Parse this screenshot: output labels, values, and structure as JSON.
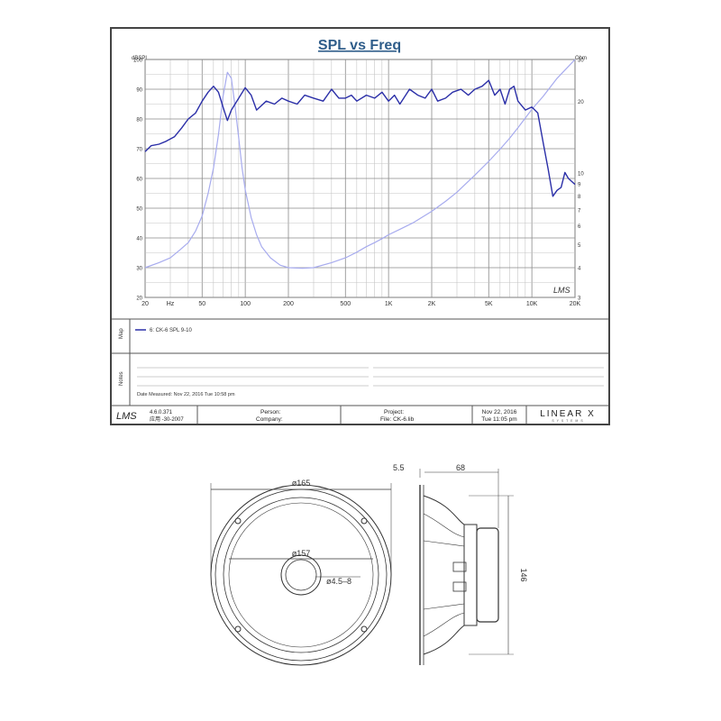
{
  "chart_data": {
    "type": "line",
    "title": "SPL vs Freq",
    "y_left_unit": "dBSPL",
    "y_right_unit": "Ohm",
    "ylim_left": [
      20,
      100
    ],
    "ylim_right": [
      3,
      30
    ],
    "right_scale": "log",
    "xlim": [
      20,
      20000
    ],
    "x_scale": "log",
    "grid": true,
    "x_ticks": [
      {
        "v": 20,
        "label": "20"
      },
      {
        "v": 50,
        "label": "50"
      },
      {
        "v": 100,
        "label": "100"
      },
      {
        "v": 200,
        "label": "200"
      },
      {
        "v": 500,
        "label": "500"
      },
      {
        "v": 1000,
        "label": "1K"
      },
      {
        "v": 2000,
        "label": "2K"
      },
      {
        "v": 5000,
        "label": "5K"
      },
      {
        "v": 10000,
        "label": "10K"
      },
      {
        "v": 20000,
        "label": "20K"
      }
    ],
    "x_unit": "Hz",
    "y_left_ticks": [
      20,
      30,
      40,
      50,
      60,
      70,
      80,
      90,
      100
    ],
    "y_right_ticks": [
      3,
      4,
      5,
      6,
      7,
      8,
      9,
      10,
      20,
      30
    ],
    "series": [
      {
        "name": "6: CK-6 SPL 9-10",
        "axis": "left",
        "color": "#2b2fa8",
        "x": [
          20,
          22,
          25,
          28,
          32,
          36,
          40,
          45,
          50,
          55,
          60,
          65,
          70,
          75,
          80,
          90,
          100,
          110,
          120,
          140,
          160,
          180,
          200,
          230,
          260,
          300,
          350,
          400,
          450,
          500,
          550,
          600,
          700,
          800,
          900,
          1000,
          1100,
          1200,
          1400,
          1600,
          1800,
          2000,
          2200,
          2500,
          2800,
          3200,
          3600,
          4000,
          4500,
          5000,
          5500,
          6000,
          6500,
          7000,
          7500,
          8000,
          9000,
          10000,
          11000,
          12000,
          13000,
          14000,
          15000,
          16000,
          17000,
          18000,
          20000
        ],
        "values": [
          69,
          71,
          71.5,
          72.5,
          74,
          77,
          80,
          82,
          86,
          89,
          91,
          89,
          84,
          79.5,
          83,
          87,
          90.5,
          88,
          83,
          86,
          85,
          87,
          86,
          85,
          88,
          87,
          86,
          90,
          87,
          87,
          88,
          86,
          88,
          87,
          89,
          86,
          88,
          85,
          90,
          88,
          87,
          90,
          86,
          87,
          89,
          90,
          88,
          90,
          91,
          93,
          88,
          90,
          85,
          90,
          91,
          86,
          83,
          84,
          82,
          72,
          63,
          54,
          56,
          57,
          62,
          60,
          58
        ]
      },
      {
        "name": "impedance",
        "axis": "right",
        "color": "#a7abee",
        "x": [
          20,
          25,
          30,
          35,
          40,
          45,
          50,
          55,
          60,
          65,
          70,
          75,
          80,
          85,
          90,
          95,
          100,
          110,
          120,
          130,
          150,
          175,
          200,
          250,
          300,
          400,
          500,
          600,
          700,
          800,
          900,
          1000,
          1200,
          1500,
          2000,
          2500,
          3000,
          4000,
          5000,
          6000,
          7000,
          8000,
          10000,
          12000,
          15000,
          20000
        ],
        "values": [
          4,
          4.2,
          4.4,
          4.75,
          5.1,
          5.7,
          6.6,
          8.2,
          10.5,
          14.5,
          21,
          26.5,
          25,
          19,
          14,
          10.5,
          8.5,
          6.5,
          5.5,
          4.9,
          4.4,
          4.1,
          4.0,
          3.98,
          4.0,
          4.2,
          4.4,
          4.65,
          4.9,
          5.1,
          5.3,
          5.5,
          5.8,
          6.2,
          6.9,
          7.6,
          8.3,
          9.8,
          11.2,
          12.6,
          14,
          15.5,
          18.5,
          21,
          25,
          30
        ]
      }
    ],
    "watermark": "LMS"
  },
  "map": {
    "label": "Map",
    "entry": "6: CK-6   SPL   9-10"
  },
  "notes": {
    "label": "Notes",
    "date_measured": "Date Measured: Nov 22, 2016   Tue 10:58 pm"
  },
  "footer": {
    "logo": "LMS",
    "version": "4.6.0.371",
    "date_line": "应用 -30-2007",
    "person_label": "Person:",
    "company_label": "Company:",
    "project_label": "Project:",
    "file_label": "File: CK-6.lib",
    "date": "Nov 22, 2016",
    "time": "Tue 11:05 pm",
    "brand": "LINEAR X",
    "brand_sub": "S Y S T E M S"
  },
  "drawing": {
    "dim_outer": "ø165",
    "dim_inner": "ø157",
    "dim_hole": "ø4.5–8",
    "dim_flange": "5.5",
    "dim_depth": "68",
    "dim_height": "146"
  }
}
